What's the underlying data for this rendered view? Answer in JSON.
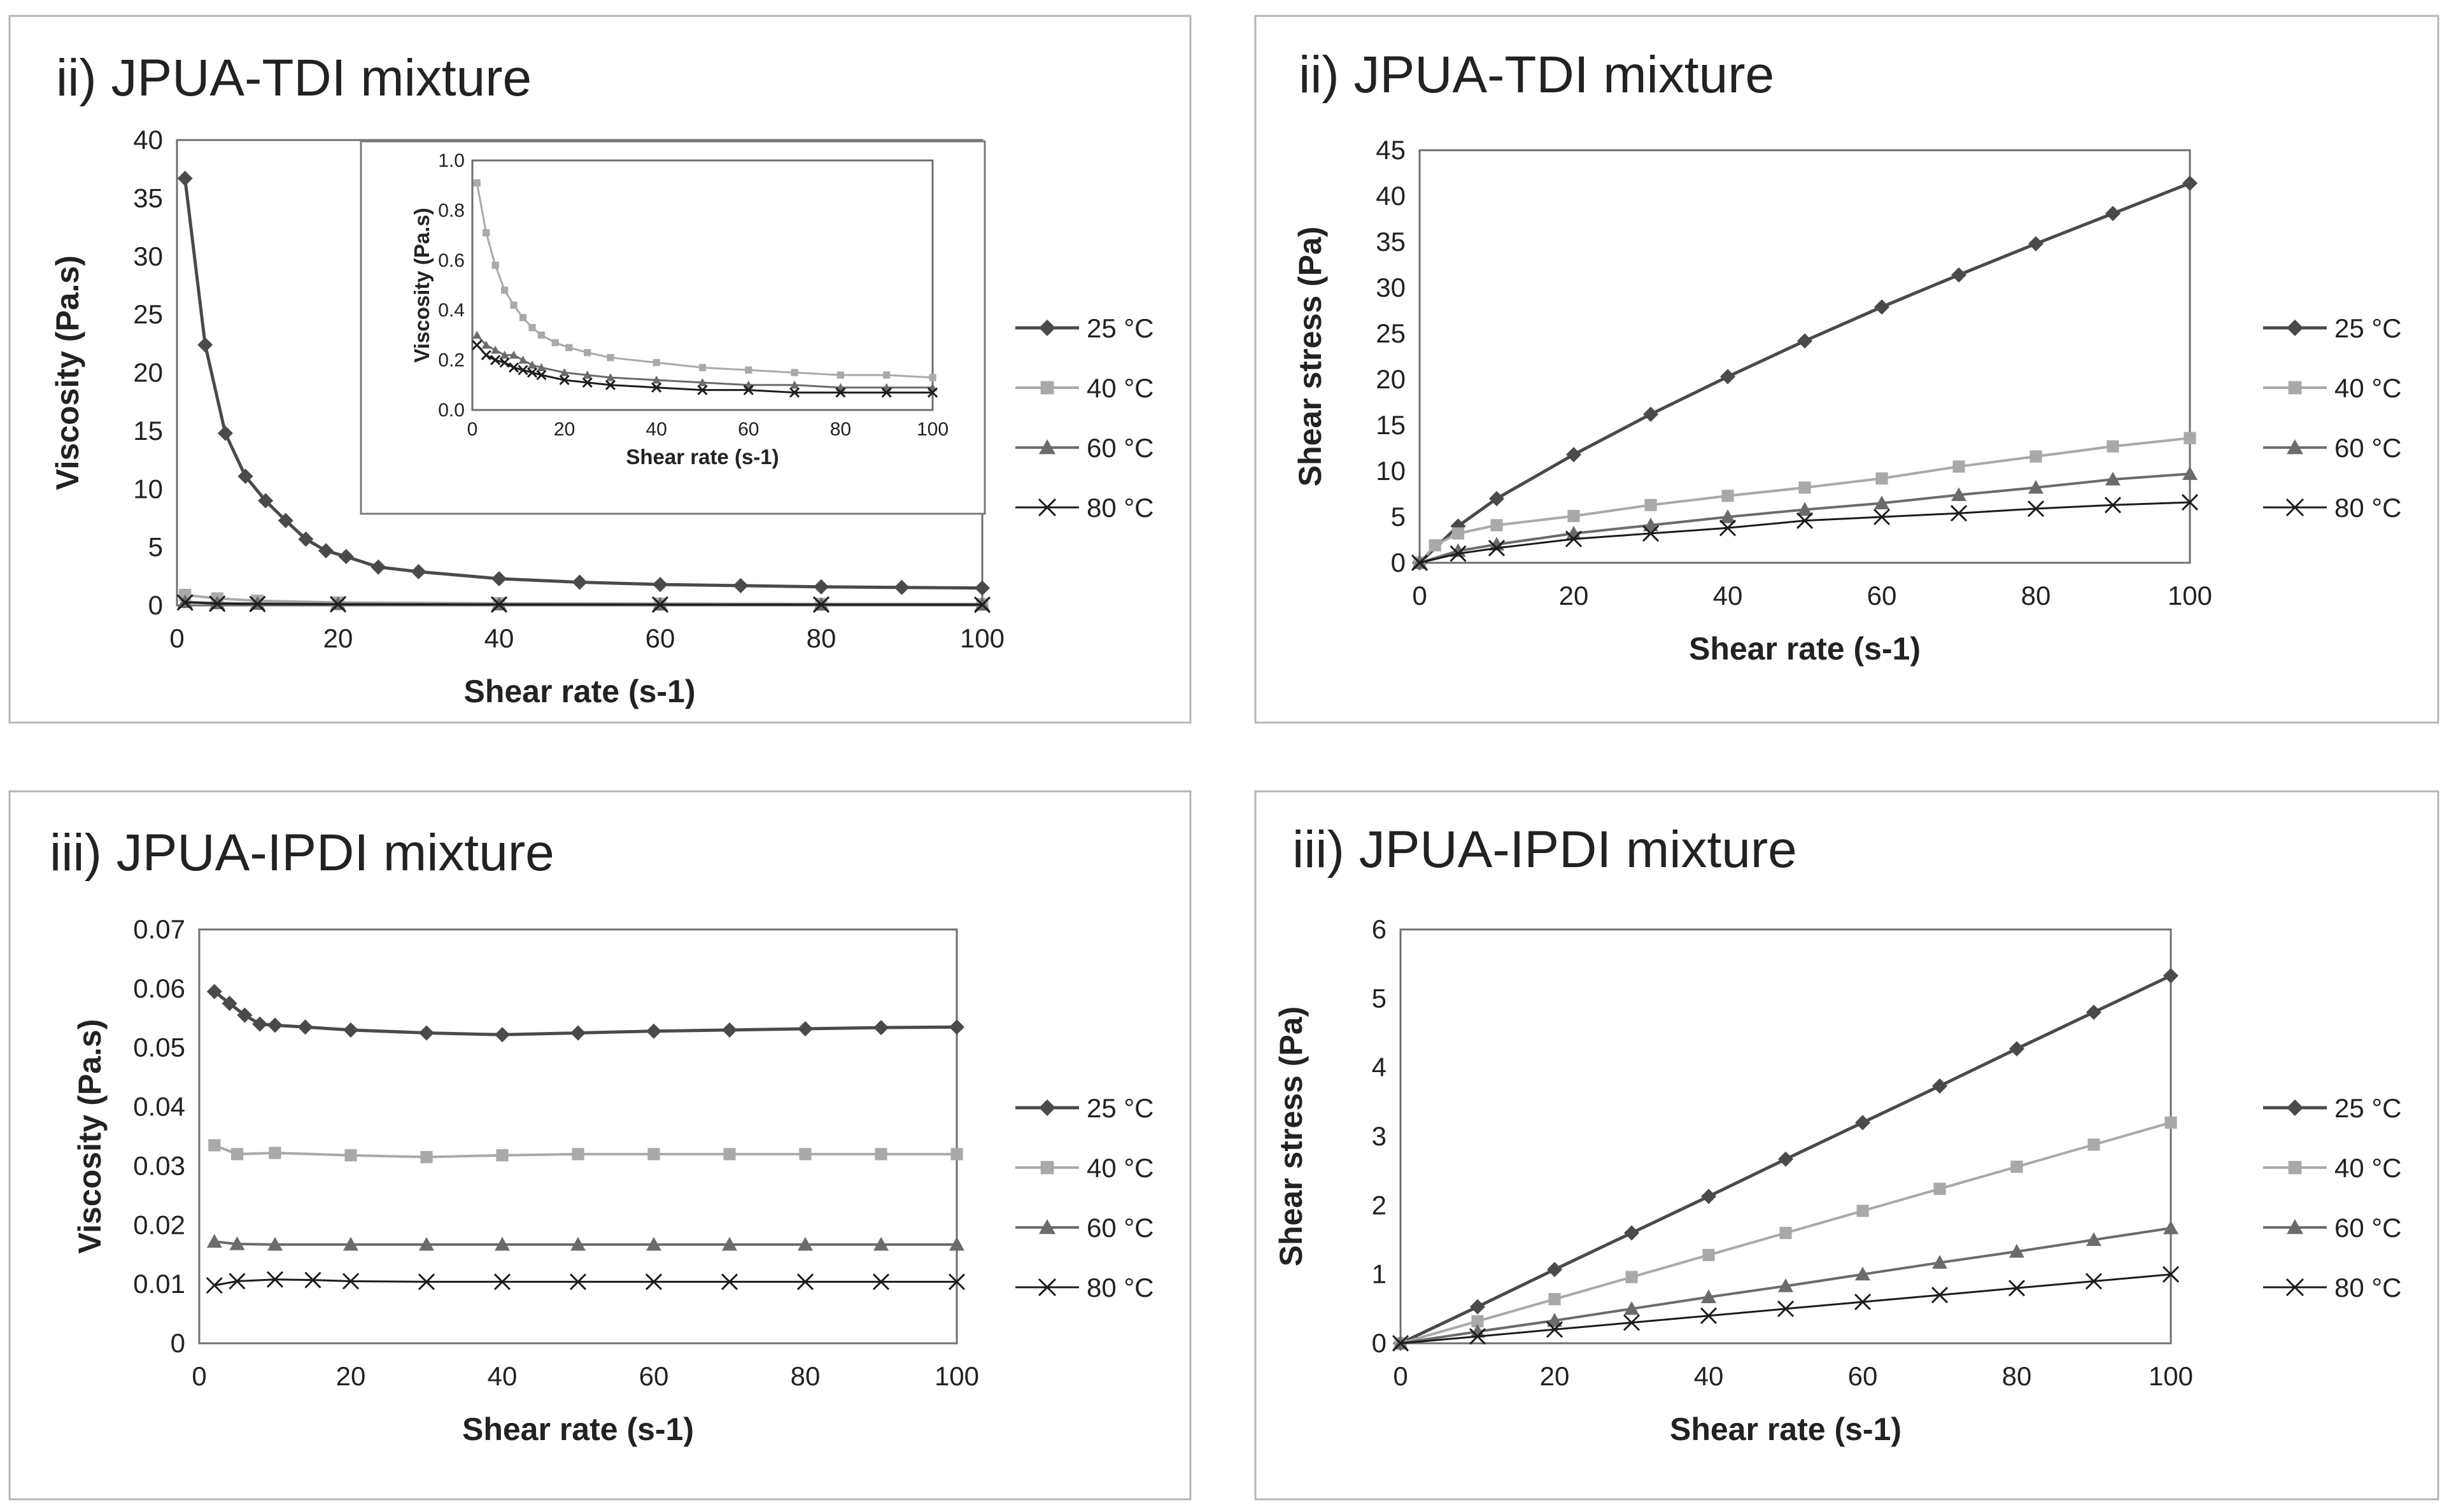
{
  "colors": {
    "s25": "#4a4a4a",
    "s40": "#a9a9a9",
    "s60": "#6b6b6b",
    "s80": "#1c1c1c"
  },
  "legend": [
    "25 °C",
    "40 °C",
    "60 °C",
    "80 °C"
  ],
  "chart_data": [
    {
      "type": "line",
      "title": "ii) JPUA-TDI mixture",
      "xlabel": "Shear rate (s-1)",
      "ylabel": "Viscosity (Pa.s)",
      "xlim": [
        0,
        100
      ],
      "ylim": [
        0,
        40
      ],
      "xticks": [
        "0",
        "20",
        "40",
        "60",
        "80",
        "100"
      ],
      "yticks": [
        "0",
        "5",
        "10",
        "15",
        "20",
        "25",
        "30",
        "35",
        "40"
      ],
      "legend_position": "right",
      "series": [
        {
          "name": "25 °C",
          "x": [
            1,
            3.5,
            6,
            8.5,
            11,
            13.5,
            16,
            18.5,
            21,
            25,
            30,
            40,
            50,
            60,
            70,
            80,
            90,
            100
          ],
          "values": [
            36.7,
            22.4,
            14.8,
            11.1,
            9.0,
            7.3,
            5.7,
            4.7,
            4.2,
            3.3,
            2.9,
            2.3,
            2.0,
            1.8,
            1.7,
            1.6,
            1.55,
            1.5
          ]
        },
        {
          "name": "40 °C",
          "x": [
            1,
            5,
            10,
            20,
            40,
            60,
            80,
            100
          ],
          "values": [
            0.9,
            0.6,
            0.4,
            0.25,
            0.18,
            0.15,
            0.13,
            0.12
          ]
        },
        {
          "name": "60 °C",
          "x": [
            1,
            5,
            10,
            20,
            40,
            60,
            80,
            100
          ],
          "values": [
            0.3,
            0.2,
            0.15,
            0.13,
            0.1,
            0.09,
            0.08,
            0.08
          ]
        },
        {
          "name": "80 °C",
          "x": [
            1,
            5,
            10,
            20,
            40,
            60,
            80,
            100
          ],
          "values": [
            0.25,
            0.15,
            0.12,
            0.1,
            0.08,
            0.07,
            0.07,
            0.06
          ]
        }
      ],
      "inset": {
        "xlabel": "Shear rate (s-1)",
        "ylabel": "Viscosity (Pa.s)",
        "xlim": [
          0,
          100
        ],
        "ylim": [
          0,
          1.0
        ],
        "xticks": [
          "0",
          "20",
          "40",
          "60",
          "80",
          "100"
        ],
        "yticks": [
          "0.0",
          "0.2",
          "0.4",
          "0.6",
          "0.8",
          "1.0"
        ],
        "series": [
          {
            "name": "40 °C",
            "x": [
              1,
              3,
              5,
              7,
              9,
              11,
              13,
              15,
              18,
              21,
              25,
              30,
              40,
              50,
              60,
              70,
              80,
              90,
              100
            ],
            "values": [
              0.91,
              0.71,
              0.58,
              0.48,
              0.42,
              0.37,
              0.33,
              0.3,
              0.27,
              0.25,
              0.23,
              0.21,
              0.19,
              0.17,
              0.16,
              0.15,
              0.14,
              0.14,
              0.13
            ]
          },
          {
            "name": "60 °C",
            "x": [
              1,
              3,
              5,
              7,
              9,
              11,
              13,
              15,
              20,
              25,
              30,
              40,
              50,
              60,
              70,
              80,
              90,
              100
            ],
            "values": [
              0.3,
              0.26,
              0.24,
              0.22,
              0.22,
              0.2,
              0.18,
              0.17,
              0.15,
              0.14,
              0.13,
              0.12,
              0.11,
              0.1,
              0.1,
              0.09,
              0.09,
              0.09
            ]
          },
          {
            "name": "80 °C",
            "x": [
              1,
              3,
              5,
              7,
              9,
              11,
              13,
              15,
              20,
              25,
              30,
              40,
              50,
              60,
              70,
              80,
              90,
              100
            ],
            "values": [
              0.26,
              0.22,
              0.2,
              0.19,
              0.17,
              0.16,
              0.15,
              0.14,
              0.12,
              0.11,
              0.1,
              0.09,
              0.08,
              0.08,
              0.07,
              0.07,
              0.07,
              0.07
            ]
          }
        ]
      }
    },
    {
      "type": "line",
      "title": "ii) JPUA-TDI mixture",
      "xlabel": "Shear rate (s-1)",
      "ylabel": "Shear stress (Pa)",
      "xlim": [
        0,
        100
      ],
      "ylim": [
        0,
        45
      ],
      "xticks": [
        "0",
        "20",
        "40",
        "60",
        "80",
        "100"
      ],
      "yticks": [
        "0",
        "5",
        "10",
        "15",
        "20",
        "25",
        "30",
        "35",
        "40",
        "45"
      ],
      "legend_position": "right",
      "series": [
        {
          "name": "25 °C",
          "x": [
            0,
            5,
            10,
            20,
            30,
            40,
            50,
            60,
            70,
            80,
            90,
            100
          ],
          "values": [
            0,
            4.0,
            7.0,
            11.8,
            16.2,
            20.3,
            24.2,
            27.9,
            31.4,
            34.8,
            38.1,
            41.4
          ]
        },
        {
          "name": "40 °C",
          "x": [
            0,
            2,
            5,
            10,
            20,
            30,
            40,
            50,
            60,
            70,
            80,
            90,
            100
          ],
          "values": [
            0,
            1.9,
            3.2,
            4.1,
            5.1,
            6.3,
            7.3,
            8.2,
            9.2,
            10.5,
            11.6,
            12.7,
            13.6
          ]
        },
        {
          "name": "60 °C",
          "x": [
            0,
            5,
            10,
            20,
            30,
            40,
            50,
            60,
            70,
            80,
            90,
            100
          ],
          "values": [
            0,
            1.3,
            2.0,
            3.2,
            4.1,
            5.0,
            5.8,
            6.5,
            7.4,
            8.2,
            9.1,
            9.7
          ]
        },
        {
          "name": "80 °C",
          "x": [
            0,
            5,
            10,
            20,
            30,
            40,
            50,
            60,
            70,
            80,
            90,
            100
          ],
          "values": [
            0,
            1.0,
            1.6,
            2.6,
            3.2,
            3.8,
            4.6,
            5.0,
            5.4,
            5.9,
            6.3,
            6.6
          ]
        }
      ]
    },
    {
      "type": "line",
      "title": "iii) JPUA-IPDI mixture",
      "xlabel": "Shear rate (s-1)",
      "ylabel": "Viscosity (Pa.s)",
      "xlim": [
        0,
        100
      ],
      "ylim": [
        0,
        0.07
      ],
      "xticks": [
        "0",
        "20",
        "40",
        "60",
        "80",
        "100"
      ],
      "yticks": [
        "0",
        "0.01",
        "0.02",
        "0.03",
        "0.04",
        "0.05",
        "0.06",
        "0.07"
      ],
      "legend_position": "right",
      "series": [
        {
          "name": "25 °C",
          "x": [
            2,
            4,
            6,
            8,
            10,
            14,
            20,
            30,
            40,
            50,
            60,
            70,
            80,
            90,
            100
          ],
          "values": [
            0.0595,
            0.0575,
            0.0555,
            0.054,
            0.0538,
            0.0535,
            0.053,
            0.0525,
            0.0522,
            0.0525,
            0.0528,
            0.053,
            0.0532,
            0.0534,
            0.0535
          ]
        },
        {
          "name": "40 °C",
          "x": [
            2,
            5,
            10,
            20,
            30,
            40,
            50,
            60,
            70,
            80,
            90,
            100
          ],
          "values": [
            0.0335,
            0.032,
            0.0322,
            0.0318,
            0.0315,
            0.0318,
            0.032,
            0.032,
            0.032,
            0.032,
            0.032,
            0.032
          ]
        },
        {
          "name": "60 °C",
          "x": [
            2,
            5,
            10,
            20,
            30,
            40,
            50,
            60,
            70,
            80,
            90,
            100
          ],
          "values": [
            0.0172,
            0.0168,
            0.0167,
            0.0167,
            0.0167,
            0.0167,
            0.0167,
            0.0167,
            0.0167,
            0.0167,
            0.0167,
            0.0167
          ]
        },
        {
          "name": "80 °C",
          "x": [
            2,
            5,
            10,
            15,
            20,
            30,
            40,
            50,
            60,
            70,
            80,
            90,
            100
          ],
          "values": [
            0.0098,
            0.0105,
            0.0108,
            0.0107,
            0.0105,
            0.0104,
            0.0104,
            0.0104,
            0.0104,
            0.0104,
            0.0104,
            0.0104,
            0.0104
          ]
        }
      ]
    },
    {
      "type": "line",
      "title": "iii) JPUA-IPDI mixture",
      "xlabel": "Shear rate (s-1)",
      "ylabel": "Shear stress (Pa)",
      "xlim": [
        0,
        100
      ],
      "ylim": [
        0,
        6
      ],
      "xticks": [
        "0",
        "20",
        "40",
        "60",
        "80",
        "100"
      ],
      "yticks": [
        "0",
        "1",
        "2",
        "3",
        "4",
        "5",
        "6"
      ],
      "legend_position": "right",
      "series": [
        {
          "name": "25 °C",
          "x": [
            0,
            10,
            20,
            30,
            40,
            50,
            60,
            70,
            80,
            90,
            100
          ],
          "values": [
            0,
            0.53,
            1.07,
            1.6,
            2.13,
            2.67,
            3.2,
            3.73,
            4.27,
            4.8,
            5.33
          ]
        },
        {
          "name": "40 °C",
          "x": [
            0,
            10,
            20,
            30,
            40,
            50,
            60,
            70,
            80,
            90,
            100
          ],
          "values": [
            0,
            0.32,
            0.64,
            0.96,
            1.28,
            1.6,
            1.92,
            2.24,
            2.56,
            2.88,
            3.2
          ]
        },
        {
          "name": "60 °C",
          "x": [
            0,
            10,
            20,
            30,
            40,
            50,
            60,
            70,
            80,
            90,
            100
          ],
          "values": [
            0,
            0.17,
            0.33,
            0.5,
            0.67,
            0.83,
            1.0,
            1.17,
            1.33,
            1.5,
            1.67
          ]
        },
        {
          "name": "80 °C",
          "x": [
            0,
            10,
            20,
            30,
            40,
            50,
            60,
            70,
            80,
            90,
            100
          ],
          "values": [
            0,
            0.1,
            0.2,
            0.3,
            0.4,
            0.5,
            0.6,
            0.7,
            0.8,
            0.9,
            1.0
          ]
        }
      ]
    }
  ]
}
